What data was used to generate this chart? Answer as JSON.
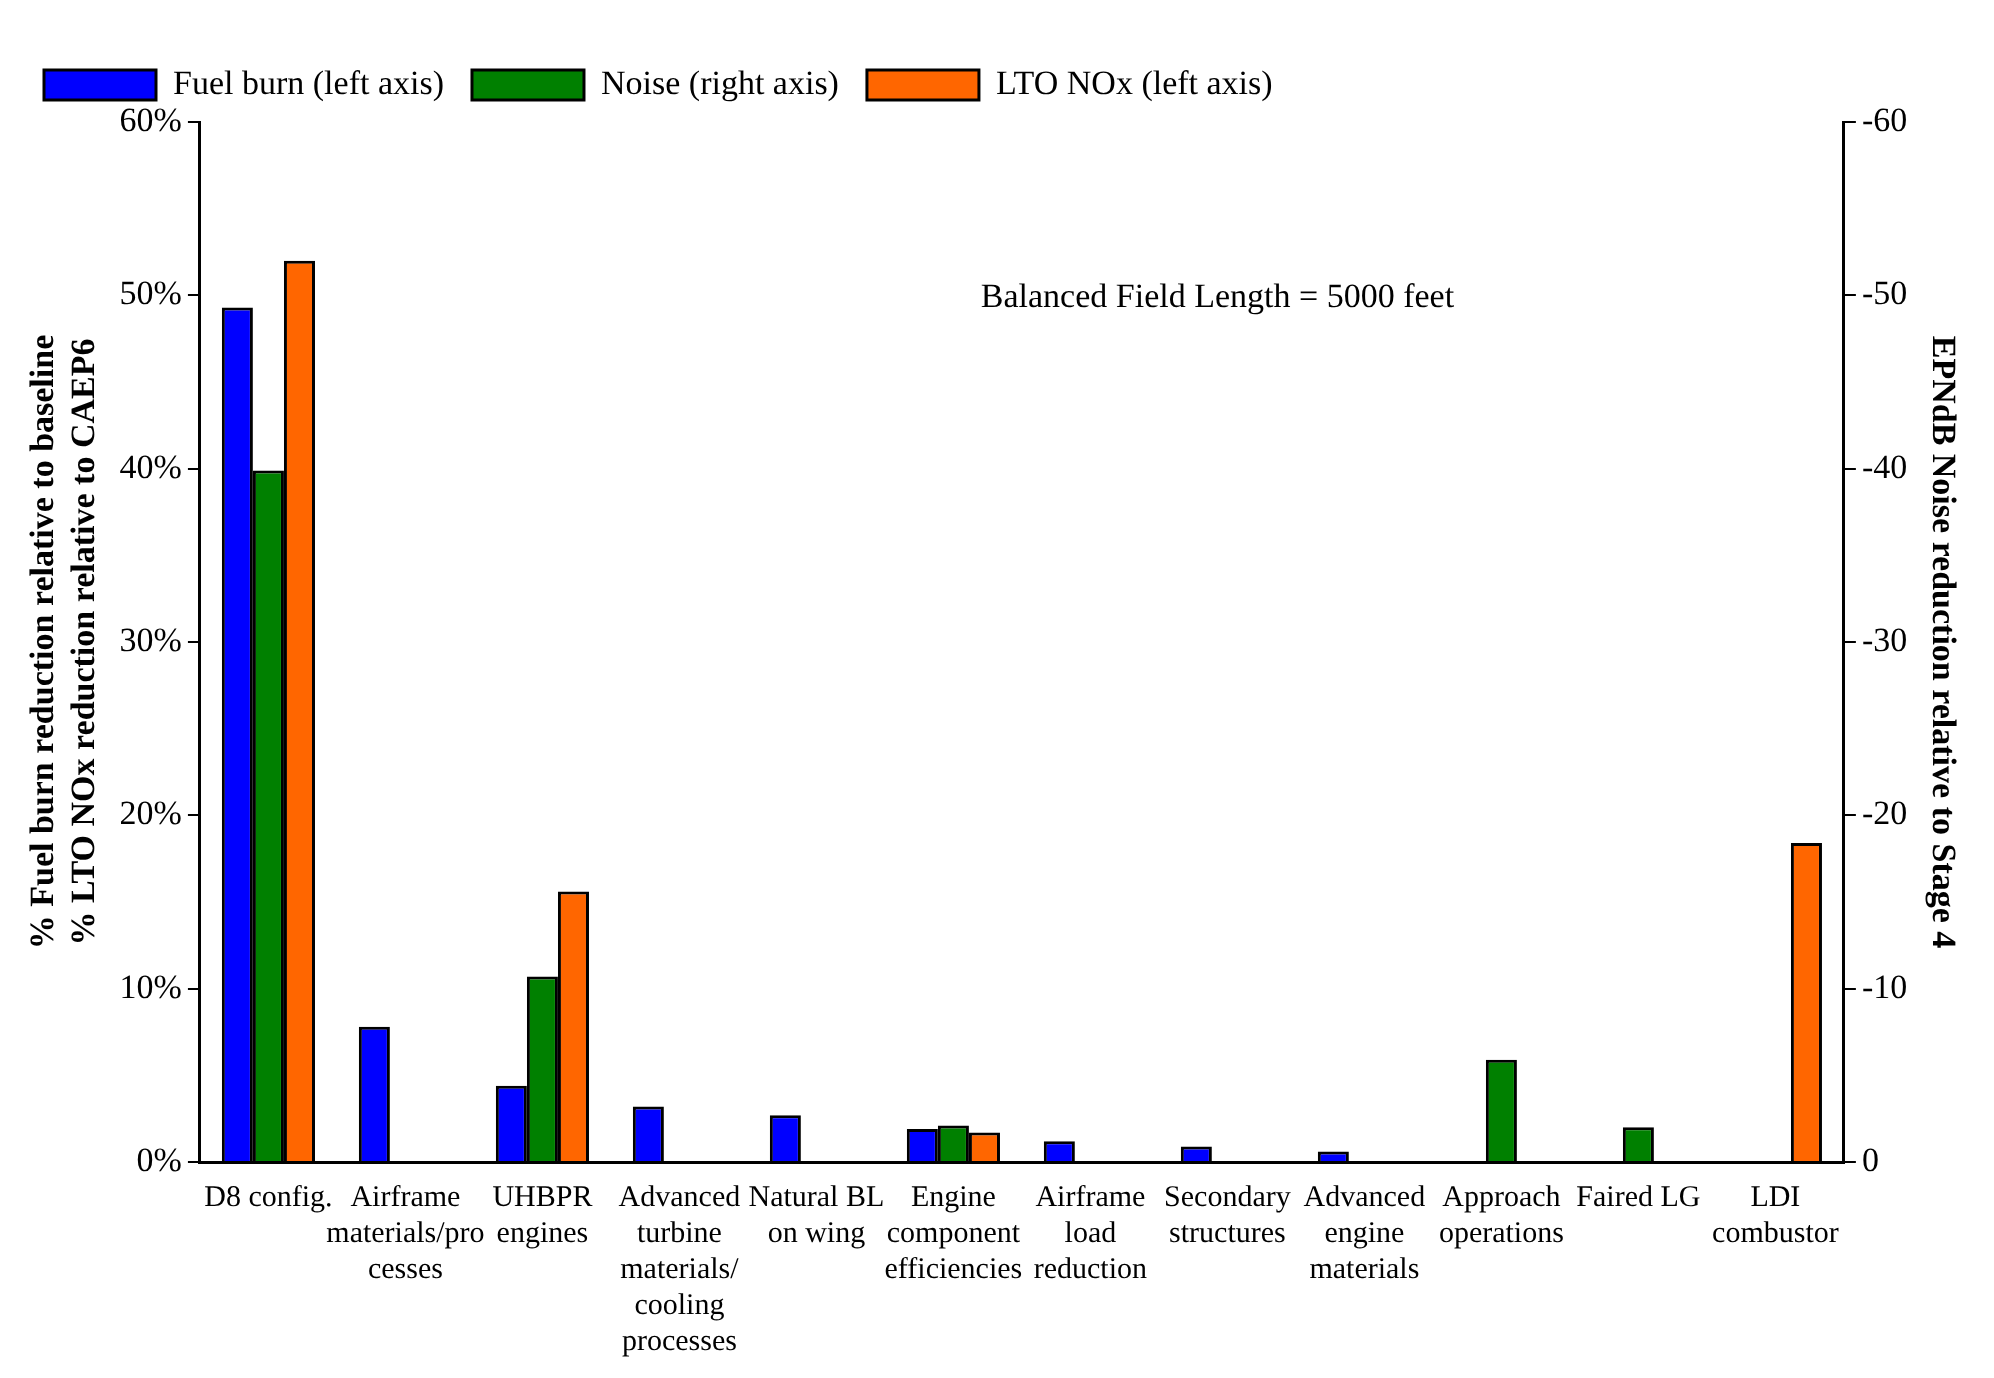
{
  "chart_data": {
    "type": "bar",
    "categories": [
      "D8 config.",
      "Airframe materials/processes",
      "UHBPR engines",
      "Advanced turbine materials/ cooling processes",
      "Natural BL on wing",
      "Engine component efficiencies",
      "Airframe load reduction",
      "Secondary structures",
      "Advanced engine materials",
      "Approach operations",
      "Faired LG",
      "LDI combustor"
    ],
    "series": [
      {
        "name": "Fuel burn (left axis)",
        "color": "#0000ff",
        "values": [
          49.3,
          7.8,
          4.4,
          3.2,
          2.7,
          1.9,
          1.2,
          0.9,
          0.6,
          null,
          0,
          null
        ]
      },
      {
        "name": "Noise (right axis)",
        "color": "#008000",
        "axis": "y2",
        "values": [
          -39.9,
          null,
          -10.7,
          0,
          null,
          -2.1,
          null,
          null,
          null,
          -5.9,
          -2.0,
          null
        ]
      },
      {
        "name": "LTO NOx (left axis)",
        "color": "#ff6600",
        "values": [
          52.0,
          null,
          15.6,
          null,
          null,
          1.7,
          null,
          null,
          null,
          null,
          null,
          18.4
        ]
      }
    ],
    "ylabel": "% Fuel burn reduction relative to baseline\n% LTO NOx reduction relative to CAEP6",
    "y2label": "EPNdB Noise reduction relative to Stage 4",
    "ylim": [
      0,
      60
    ],
    "yticks": [
      {
        "value": 0,
        "label": "0%"
      },
      {
        "value": 10,
        "label": "10%"
      },
      {
        "value": 20,
        "label": "20%"
      },
      {
        "value": 30,
        "label": "30%"
      },
      {
        "value": 40,
        "label": "40%"
      },
      {
        "value": 50,
        "label": "50%"
      },
      {
        "value": 60,
        "label": "60%"
      }
    ],
    "y2lim": [
      0,
      -60
    ],
    "y2ticks": [
      0,
      -10,
      -20,
      -30,
      -40,
      -50,
      -60
    ],
    "annotations": [
      "Balanced Field Length = 5000 feet"
    ],
    "legend": "top",
    "grid": false
  }
}
